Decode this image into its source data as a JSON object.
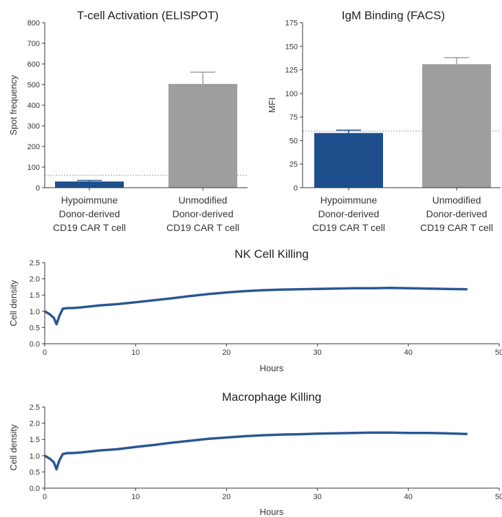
{
  "chart_data": [
    {
      "type": "bar",
      "title": "T-cell Activation (ELISPOT)",
      "ylabel": "Spot frequency",
      "ylim": [
        0,
        800
      ],
      "yticks": [
        "0",
        "100",
        "200",
        "300",
        "400",
        "500",
        "600",
        "700",
        "800"
      ],
      "categories": [
        [
          "Hypoimmune",
          "Donor-derived",
          "CD19 CAR T cell"
        ],
        [
          "Unmodified",
          "Donor-derived",
          "CD19 CAR T cell"
        ]
      ],
      "values": [
        30,
        503
      ],
      "errors": [
        5,
        57
      ],
      "reference_line": 60,
      "colors": [
        "#1f4e8c",
        "#9e9e9e"
      ]
    },
    {
      "type": "bar",
      "title": "IgM Binding (FACS)",
      "ylabel": "MFI",
      "ylim": [
        0,
        175
      ],
      "yticks": [
        "0",
        "25",
        "50",
        "75",
        "100",
        "125",
        "150",
        "175"
      ],
      "categories": [
        [
          "Hypoimmune",
          "Donor-derived",
          "CD19 CAR T cell"
        ],
        [
          "Unmodified",
          "Donor-derived",
          "CD19 CAR T cell"
        ]
      ],
      "values": [
        58,
        131
      ],
      "errors": [
        3,
        7
      ],
      "reference_line": 60,
      "colors": [
        "#1f4e8c",
        "#9e9e9e"
      ]
    },
    {
      "type": "line",
      "title": "NK Cell Killing",
      "xlabel": "Hours",
      "ylabel": "Cell density",
      "xlim": [
        0,
        50
      ],
      "ylim": [
        0,
        2.5
      ],
      "xticks": [
        "0",
        "10",
        "20",
        "30",
        "40",
        "50"
      ],
      "yticks": [
        "0.0",
        "0.5",
        "1.0",
        "1.5",
        "2.0",
        "2.5"
      ],
      "color": "#1f4e8c",
      "series": [
        {
          "x": [
            0,
            0.5,
            1,
            1.3,
            1.6,
            2,
            2.5,
            3,
            4,
            5,
            6,
            8,
            10,
            12,
            14,
            16,
            18,
            20,
            22,
            24,
            26,
            28,
            30,
            32,
            34,
            36,
            38,
            40,
            42,
            44,
            46.5
          ],
          "y": [
            1.0,
            0.92,
            0.8,
            0.6,
            0.85,
            1.08,
            1.1,
            1.1,
            1.12,
            1.15,
            1.18,
            1.22,
            1.28,
            1.34,
            1.4,
            1.47,
            1.53,
            1.58,
            1.62,
            1.65,
            1.67,
            1.68,
            1.69,
            1.7,
            1.71,
            1.71,
            1.72,
            1.71,
            1.7,
            1.69,
            1.68
          ]
        }
      ]
    },
    {
      "type": "line",
      "title": "Macrophage Killing",
      "xlabel": "Hours",
      "ylabel": "Cell density",
      "xlim": [
        0,
        50
      ],
      "ylim": [
        0,
        2.5
      ],
      "xticks": [
        "0",
        "10",
        "20",
        "30",
        "40",
        "50"
      ],
      "yticks": [
        "0.0",
        "0.5",
        "1.0",
        "1.5",
        "2.0",
        "2.5"
      ],
      "color": "#1f4e8c",
      "series": [
        {
          "x": [
            0,
            0.5,
            1,
            1.3,
            1.6,
            2,
            2.5,
            3,
            4,
            5,
            6,
            8,
            10,
            12,
            14,
            16,
            18,
            20,
            22,
            24,
            26,
            28,
            30,
            32,
            34,
            36,
            38,
            40,
            42,
            44,
            46.5
          ],
          "y": [
            1.0,
            0.92,
            0.8,
            0.58,
            0.85,
            1.05,
            1.08,
            1.08,
            1.1,
            1.13,
            1.16,
            1.2,
            1.27,
            1.33,
            1.4,
            1.46,
            1.52,
            1.56,
            1.6,
            1.63,
            1.65,
            1.66,
            1.68,
            1.69,
            1.7,
            1.71,
            1.71,
            1.7,
            1.7,
            1.69,
            1.67
          ]
        }
      ]
    }
  ]
}
